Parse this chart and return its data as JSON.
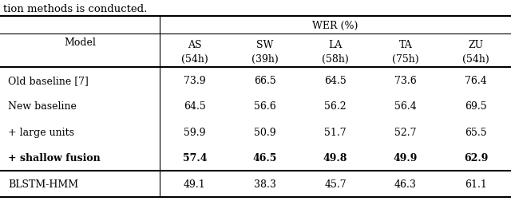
{
  "title_text": "tion methods is conducted.",
  "header_group": "WER (%)",
  "col_header_lang": [
    "AS",
    "SW",
    "LA",
    "TA",
    "ZU"
  ],
  "col_header_hours": [
    "(54h)",
    "(39h)",
    "(58h)",
    "(75h)",
    "(54h)"
  ],
  "rows": [
    {
      "label": "Old baseline [7]",
      "values": [
        "73.9",
        "66.5",
        "64.5",
        "73.6",
        "76.4"
      ],
      "bold": false
    },
    {
      "label": "New baseline",
      "values": [
        "64.5",
        "56.6",
        "56.2",
        "56.4",
        "69.5"
      ],
      "bold": false
    },
    {
      "label": "+ large units",
      "values": [
        "59.9",
        "50.9",
        "51.7",
        "52.7",
        "65.5"
      ],
      "bold": false
    },
    {
      "label": "+ shallow fusion",
      "values": [
        "57.4",
        "46.5",
        "49.8",
        "49.9",
        "62.9"
      ],
      "bold": true
    },
    {
      "label": "BLSTM-HMM",
      "values": [
        "49.1",
        "38.3",
        "45.7",
        "46.3",
        "61.1"
      ],
      "bold": false
    }
  ],
  "bg_color": "#ffffff",
  "text_color": "#000000",
  "line_color": "#000000",
  "font_size": 9.0,
  "title_font_size": 9.5
}
